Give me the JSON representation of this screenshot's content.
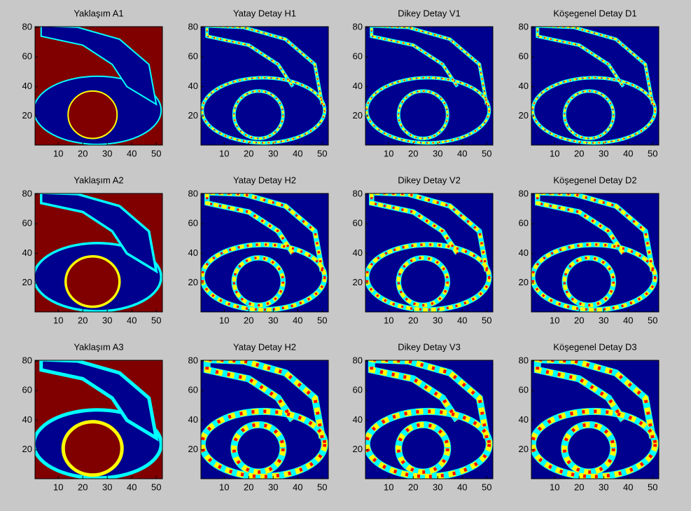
{
  "chart_data": [
    {
      "type": "image",
      "title": "Yaklaşım A1",
      "colormap": "jet",
      "xlim": [
        0.5,
        52.5
      ],
      "ylim": [
        80.5,
        0.5
      ],
      "xticks": [
        10,
        20,
        30,
        40,
        50
      ],
      "yticks": [
        20,
        40,
        60,
        80
      ]
    },
    {
      "type": "image",
      "title": "Yatay Detay H1",
      "colormap": "jet",
      "xlim": [
        0.5,
        52.5
      ],
      "ylim": [
        80.5,
        0.5
      ],
      "xticks": [
        10,
        20,
        30,
        40,
        50
      ],
      "yticks": [
        20,
        40,
        60,
        80
      ]
    },
    {
      "type": "image",
      "title": "Dikey Detay V1",
      "colormap": "jet",
      "xlim": [
        0.5,
        52.5
      ],
      "ylim": [
        80.5,
        0.5
      ],
      "xticks": [
        10,
        20,
        30,
        40,
        50
      ],
      "yticks": [
        20,
        40,
        60,
        80
      ]
    },
    {
      "type": "image",
      "title": "Köşegenel Detay D1",
      "colormap": "jet",
      "xlim": [
        0.5,
        52.5
      ],
      "ylim": [
        80.5,
        0.5
      ],
      "xticks": [
        10,
        20,
        30,
        40,
        50
      ],
      "yticks": [
        20,
        40,
        60,
        80
      ]
    },
    {
      "type": "image",
      "title": "Yaklaşım A2",
      "colormap": "jet",
      "xlim": [
        0.5,
        52.5
      ],
      "ylim": [
        80.5,
        0.5
      ],
      "xticks": [
        10,
        20,
        30,
        40,
        50
      ],
      "yticks": [
        20,
        40,
        60,
        80
      ]
    },
    {
      "type": "image",
      "title": "Yatay Detay H2",
      "colormap": "jet",
      "xlim": [
        0.5,
        52.5
      ],
      "ylim": [
        80.5,
        0.5
      ],
      "xticks": [
        10,
        20,
        30,
        40,
        50
      ],
      "yticks": [
        20,
        40,
        60,
        80
      ]
    },
    {
      "type": "image",
      "title": "Dikey Detay V2",
      "colormap": "jet",
      "xlim": [
        0.5,
        52.5
      ],
      "ylim": [
        80.5,
        0.5
      ],
      "xticks": [
        10,
        20,
        30,
        40,
        50
      ],
      "yticks": [
        20,
        40,
        60,
        80
      ]
    },
    {
      "type": "image",
      "title": "Köşegenel Detay D2",
      "colormap": "jet",
      "xlim": [
        0.5,
        52.5
      ],
      "ylim": [
        80.5,
        0.5
      ],
      "xticks": [
        10,
        20,
        30,
        40,
        50
      ],
      "yticks": [
        20,
        40,
        60,
        80
      ]
    },
    {
      "type": "image",
      "title": "Yaklaşım A3",
      "colormap": "jet",
      "xlim": [
        0.5,
        52.5
      ],
      "ylim": [
        80.5,
        0.5
      ],
      "xticks": [
        10,
        20,
        30,
        40,
        50
      ],
      "yticks": [
        20,
        40,
        60,
        80
      ]
    },
    {
      "type": "image",
      "title": "Yatay Detay H2",
      "colormap": "jet",
      "xlim": [
        0.5,
        52.5
      ],
      "ylim": [
        80.5,
        0.5
      ],
      "xticks": [
        10,
        20,
        30,
        40,
        50
      ],
      "yticks": [
        20,
        40,
        60,
        80
      ]
    },
    {
      "type": "image",
      "title": "Dikey Detay V3",
      "colormap": "jet",
      "xlim": [
        0.5,
        52.5
      ],
      "ylim": [
        80.5,
        0.5
      ],
      "xticks": [
        10,
        20,
        30,
        40,
        50
      ],
      "yticks": [
        20,
        40,
        60,
        80
      ]
    },
    {
      "type": "image",
      "title": "Köşegenel Detay D3",
      "colormap": "jet",
      "xlim": [
        0.5,
        52.5
      ],
      "ylim": [
        80.5,
        0.5
      ],
      "xticks": [
        10,
        20,
        30,
        40,
        50
      ],
      "yticks": [
        20,
        40,
        60,
        80
      ]
    }
  ]
}
